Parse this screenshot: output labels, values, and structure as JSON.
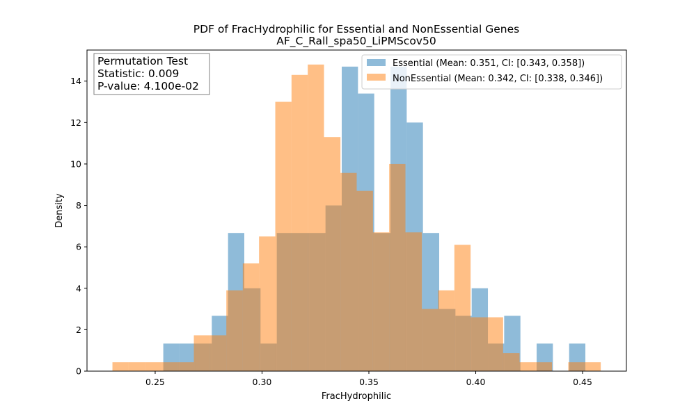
{
  "chart_data": {
    "type": "bar",
    "title": "PDF of FracHydrophilic for Essential and NonEssential Genes",
    "subtitle": "AF_C_Rall_spa50_LiPMScov50",
    "xlabel": "FracHydrophilic",
    "ylabel": "Density",
    "xlim": [
      0.2181,
      0.4705
    ],
    "ylim": [
      0,
      15.5
    ],
    "xticks": [
      "0.25",
      "0.30",
      "0.35",
      "0.40",
      "0.45"
    ],
    "yticks": [
      "0",
      "2",
      "4",
      "6",
      "8",
      "10",
      "12",
      "14"
    ],
    "grid": false,
    "legend_position": "top-right",
    "annotation": {
      "line1": "Permutation Test",
      "line2": "Statistic: 0.009",
      "line3": "P-value: 4.100e-02"
    },
    "series": [
      {
        "name": "Essential (Mean: 0.351, CI: [0.343, 0.358])",
        "color": "#1f77b4",
        "opacity": 0.5,
        "bin_edges": [
          0.2538,
          0.2613,
          0.2689,
          0.2765,
          0.2841,
          0.2917,
          0.2993,
          0.3069,
          0.3145,
          0.3221,
          0.3297,
          0.3373,
          0.3449,
          0.3525,
          0.3601,
          0.3677,
          0.3753,
          0.3829,
          0.3905,
          0.3981,
          0.4057,
          0.4133,
          0.4209,
          0.4285,
          0.4361,
          0.4437,
          0.4513
        ],
        "values": [
          1.33,
          1.33,
          1.33,
          2.67,
          6.67,
          4.0,
          1.33,
          6.67,
          6.67,
          6.67,
          8.0,
          14.7,
          13.4,
          6.67,
          14.7,
          12.0,
          6.67,
          3.0,
          2.67,
          4.0,
          1.33,
          2.67,
          0.0,
          1.33,
          0.0,
          1.33
        ]
      },
      {
        "name": "NonEssential (Mean: 0.342, CI: [0.338, 0.346])",
        "color": "#ff7f0e",
        "opacity": 0.5,
        "bin_edges": [
          0.23,
          0.2376,
          0.2452,
          0.2529,
          0.2605,
          0.2681,
          0.2757,
          0.2833,
          0.291,
          0.2986,
          0.3062,
          0.3138,
          0.3214,
          0.329,
          0.3367,
          0.3443,
          0.3519,
          0.3595,
          0.3671,
          0.3748,
          0.3824,
          0.39,
          0.3976,
          0.4052,
          0.4128,
          0.4205,
          0.4281,
          0.4357,
          0.4433,
          0.4509,
          0.4585
        ],
        "values": [
          0.43,
          0.43,
          0.43,
          0.43,
          0.43,
          1.73,
          1.73,
          3.9,
          5.2,
          6.5,
          13.0,
          14.3,
          14.8,
          11.3,
          9.57,
          8.7,
          6.7,
          10.0,
          6.7,
          3.0,
          3.9,
          6.1,
          2.6,
          2.6,
          0.87,
          0.43,
          0.43,
          0.0,
          0.43,
          0.43
        ]
      }
    ]
  }
}
